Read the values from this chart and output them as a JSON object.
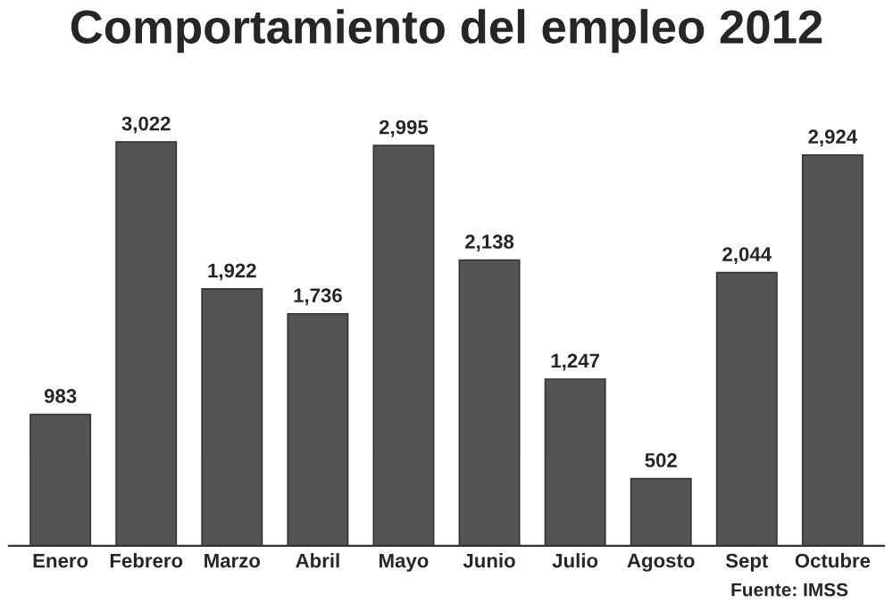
{
  "chart_data": {
    "type": "bar",
    "title": "Comportamiento del empleo 2012",
    "categories": [
      "Enero",
      "Febrero",
      "Marzo",
      "Abril",
      "Mayo",
      "Junio",
      "Julio",
      "Agosto",
      "Sept",
      "Octubre"
    ],
    "values": [
      983,
      3022,
      1922,
      1736,
      2995,
      2138,
      1247,
      502,
      2044,
      2924
    ],
    "value_labels": [
      "983",
      "3,022",
      "1,922",
      "1,736",
      "2,995",
      "2,138",
      "1,247",
      "502",
      "2,044",
      "2,924"
    ],
    "color": "#545454",
    "annotations": [
      "Fuente: IMSS"
    ],
    "grid": false,
    "legend": false
  }
}
